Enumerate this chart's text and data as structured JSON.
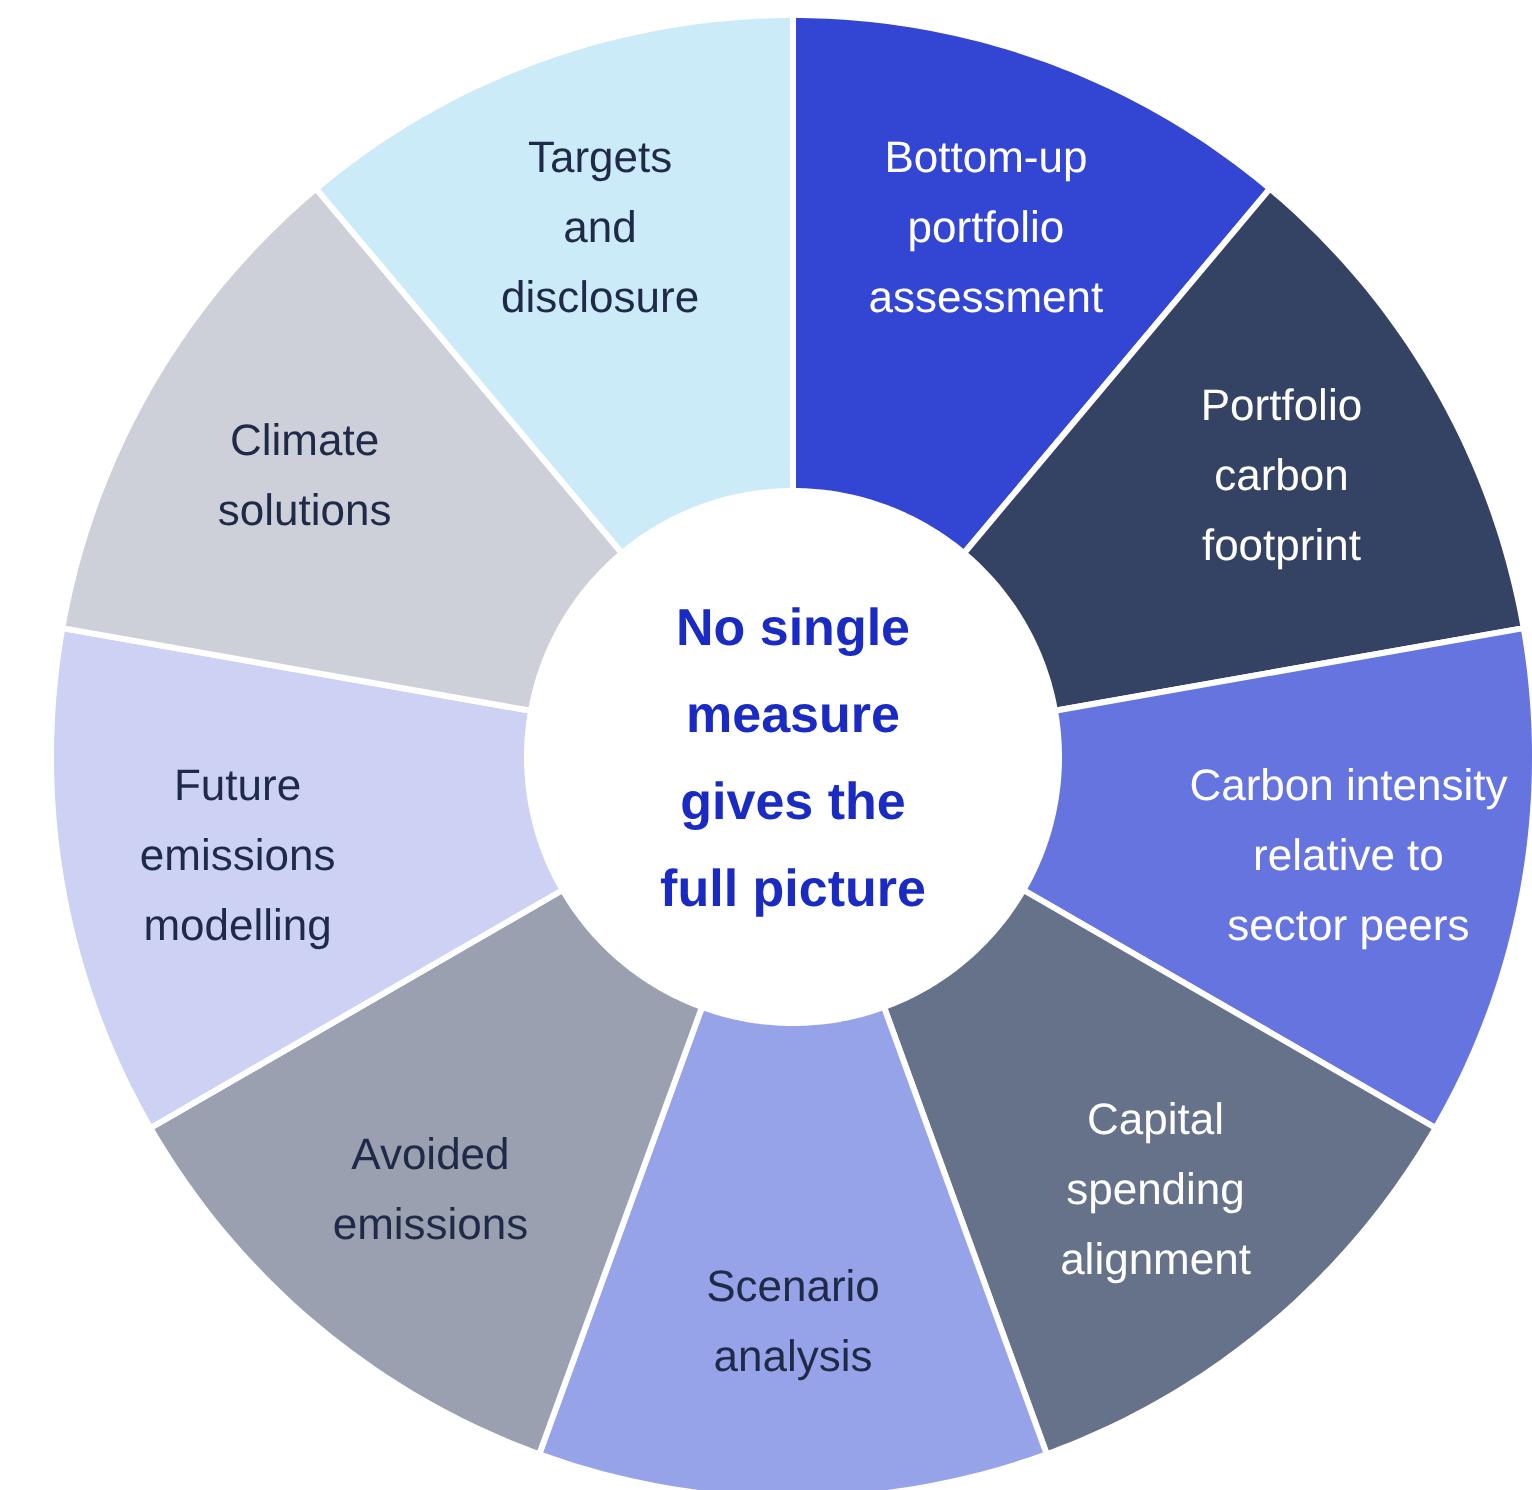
{
  "chart_data": {
    "type": "donut",
    "title": "No single measure gives the full picture",
    "categories": [
      "Bottom-up\nportfolio\nassessment",
      "Portfolio\ncarbon\nfootprint",
      "Carbon intensity\nrelative to\nsector peers",
      "Capital\nspending\nalignment",
      "Scenario\nanalysis",
      "Avoided\nemissions",
      "Future\nemissions\nmodelling",
      "Climate\nsolutions",
      "Targets\nand\ndisclosure"
    ],
    "values": [
      11.11,
      11.11,
      11.11,
      11.11,
      11.11,
      11.11,
      11.11,
      11.11,
      11.11
    ],
    "colors": [
      "#3346d3",
      "#344264",
      "#6674e0",
      "#66728a",
      "#97a3e8",
      "#9aa0b0",
      "#cdd1f4",
      "#cdd0d8",
      "#ccebf9"
    ],
    "legend": false
  }
}
